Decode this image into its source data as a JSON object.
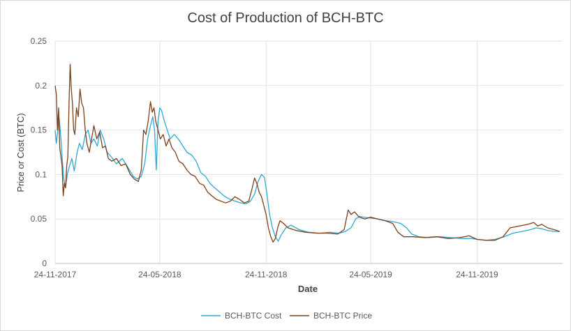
{
  "chart_data": {
    "type": "line",
    "title": "Cost of Production of BCH-BTC",
    "xlabel": "Date",
    "ylabel": "Price or Cost (BTC)",
    "ylim": [
      0,
      0.25
    ],
    "xlim": [
      "2017-11-24",
      "2020-04-20"
    ],
    "yticks": [
      "0",
      "0.05",
      "0.1",
      "0.15",
      "0.2",
      "0.25"
    ],
    "xticks": [
      {
        "label": "24-11-2017",
        "date": "2017-11-24"
      },
      {
        "label": "24-05-2018",
        "date": "2018-05-24"
      },
      {
        "label": "24-11-2018",
        "date": "2018-11-24"
      },
      {
        "label": "24-05-2019",
        "date": "2019-05-24"
      },
      {
        "label": "24-11-2019",
        "date": "2019-11-24"
      }
    ],
    "grid": true,
    "legend_position": "bottom",
    "colors": {
      "cost": "#2aa9d4",
      "price": "#7b3f1a"
    },
    "series": [
      {
        "name": "BCH-BTC Cost",
        "color": "#2aa9d4",
        "points": [
          [
            "2017-11-24",
            0.15
          ],
          [
            "2017-11-26",
            0.135
          ],
          [
            "2017-11-29",
            0.152
          ],
          [
            "2017-12-01",
            0.163
          ],
          [
            "2017-12-04",
            0.14
          ],
          [
            "2017-12-06",
            0.12
          ],
          [
            "2017-12-09",
            0.095
          ],
          [
            "2017-12-12",
            0.085
          ],
          [
            "2017-12-15",
            0.1
          ],
          [
            "2017-12-19",
            0.11
          ],
          [
            "2017-12-23",
            0.118
          ],
          [
            "2017-12-27",
            0.104
          ],
          [
            "2018-01-01",
            0.125
          ],
          [
            "2018-01-05",
            0.135
          ],
          [
            "2018-01-10",
            0.128
          ],
          [
            "2018-01-15",
            0.145
          ],
          [
            "2018-01-20",
            0.15
          ],
          [
            "2018-01-25",
            0.135
          ],
          [
            "2018-01-30",
            0.14
          ],
          [
            "2018-02-05",
            0.132
          ],
          [
            "2018-02-10",
            0.15
          ],
          [
            "2018-02-16",
            0.14
          ],
          [
            "2018-02-22",
            0.125
          ],
          [
            "2018-03-01",
            0.12
          ],
          [
            "2018-03-10",
            0.112
          ],
          [
            "2018-03-20",
            0.118
          ],
          [
            "2018-03-30",
            0.108
          ],
          [
            "2018-04-08",
            0.098
          ],
          [
            "2018-04-15",
            0.095
          ],
          [
            "2018-04-22",
            0.098
          ],
          [
            "2018-04-28",
            0.112
          ],
          [
            "2018-05-03",
            0.14
          ],
          [
            "2018-05-08",
            0.155
          ],
          [
            "2018-05-12",
            0.165
          ],
          [
            "2018-05-15",
            0.15
          ],
          [
            "2018-05-18",
            0.105
          ],
          [
            "2018-05-21",
            0.16
          ],
          [
            "2018-05-24",
            0.175
          ],
          [
            "2018-05-27",
            0.172
          ],
          [
            "2018-06-01",
            0.16
          ],
          [
            "2018-06-06",
            0.15
          ],
          [
            "2018-06-11",
            0.14
          ],
          [
            "2018-06-18",
            0.145
          ],
          [
            "2018-06-25",
            0.14
          ],
          [
            "2018-07-03",
            0.132
          ],
          [
            "2018-07-10",
            0.125
          ],
          [
            "2018-07-18",
            0.122
          ],
          [
            "2018-07-26",
            0.115
          ],
          [
            "2018-08-03",
            0.102
          ],
          [
            "2018-08-11",
            0.098
          ],
          [
            "2018-08-19",
            0.09
          ],
          [
            "2018-08-27",
            0.085
          ],
          [
            "2018-09-05",
            0.08
          ],
          [
            "2018-09-14",
            0.075
          ],
          [
            "2018-09-23",
            0.072
          ],
          [
            "2018-10-02",
            0.07
          ],
          [
            "2018-10-11",
            0.068
          ],
          [
            "2018-10-20",
            0.067
          ],
          [
            "2018-10-28",
            0.07
          ],
          [
            "2018-11-04",
            0.078
          ],
          [
            "2018-11-10",
            0.092
          ],
          [
            "2018-11-16",
            0.1
          ],
          [
            "2018-11-21",
            0.097
          ],
          [
            "2018-11-25",
            0.08
          ],
          [
            "2018-11-30",
            0.055
          ],
          [
            "2018-12-05",
            0.04
          ],
          [
            "2018-12-10",
            0.03
          ],
          [
            "2018-12-15",
            0.025
          ],
          [
            "2018-12-20",
            0.032
          ],
          [
            "2018-12-28",
            0.04
          ],
          [
            "2019-01-06",
            0.043
          ],
          [
            "2019-01-20",
            0.038
          ],
          [
            "2019-02-05",
            0.035
          ],
          [
            "2019-02-25",
            0.034
          ],
          [
            "2019-03-15",
            0.035
          ],
          [
            "2019-03-30",
            0.034
          ],
          [
            "2019-04-10",
            0.036
          ],
          [
            "2019-04-20",
            0.04
          ],
          [
            "2019-04-28",
            0.05
          ],
          [
            "2019-05-05",
            0.053
          ],
          [
            "2019-05-12",
            0.052
          ],
          [
            "2019-05-24",
            0.051
          ],
          [
            "2019-06-05",
            0.05
          ],
          [
            "2019-06-20",
            0.048
          ],
          [
            "2019-07-01",
            0.047
          ],
          [
            "2019-07-15",
            0.045
          ],
          [
            "2019-07-25",
            0.04
          ],
          [
            "2019-08-03",
            0.033
          ],
          [
            "2019-08-15",
            0.03
          ],
          [
            "2019-09-01",
            0.029
          ],
          [
            "2019-09-20",
            0.03
          ],
          [
            "2019-10-10",
            0.029
          ],
          [
            "2019-10-30",
            0.028
          ],
          [
            "2019-11-15",
            0.028
          ],
          [
            "2019-11-24",
            0.027
          ],
          [
            "2019-12-10",
            0.026
          ],
          [
            "2019-12-25",
            0.027
          ],
          [
            "2020-01-10",
            0.03
          ],
          [
            "2020-01-25",
            0.034
          ],
          [
            "2020-02-10",
            0.036
          ],
          [
            "2020-02-25",
            0.038
          ],
          [
            "2020-03-05",
            0.04
          ],
          [
            "2020-03-15",
            0.039
          ],
          [
            "2020-03-25",
            0.037
          ],
          [
            "2020-04-05",
            0.036
          ],
          [
            "2020-04-15",
            0.036
          ]
        ]
      },
      {
        "name": "BCH-BTC Price",
        "color": "#7b3f1a",
        "points": [
          [
            "2017-11-24",
            0.2
          ],
          [
            "2017-11-26",
            0.19
          ],
          [
            "2017-11-28",
            0.15
          ],
          [
            "2017-11-30",
            0.175
          ],
          [
            "2017-12-02",
            0.13
          ],
          [
            "2017-12-04",
            0.12
          ],
          [
            "2017-12-06",
            0.11
          ],
          [
            "2017-12-08",
            0.076
          ],
          [
            "2017-12-10",
            0.09
          ],
          [
            "2017-12-12",
            0.085
          ],
          [
            "2017-12-14",
            0.11
          ],
          [
            "2017-12-16",
            0.12
          ],
          [
            "2017-12-18",
            0.18
          ],
          [
            "2017-12-20",
            0.224
          ],
          [
            "2017-12-22",
            0.195
          ],
          [
            "2017-12-24",
            0.18
          ],
          [
            "2017-12-26",
            0.15
          ],
          [
            "2017-12-28",
            0.145
          ],
          [
            "2017-12-31",
            0.175
          ],
          [
            "2018-01-03",
            0.165
          ],
          [
            "2018-01-06",
            0.196
          ],
          [
            "2018-01-09",
            0.18
          ],
          [
            "2018-01-12",
            0.175
          ],
          [
            "2018-01-15",
            0.15
          ],
          [
            "2018-01-18",
            0.135
          ],
          [
            "2018-01-22",
            0.125
          ],
          [
            "2018-01-26",
            0.14
          ],
          [
            "2018-01-30",
            0.155
          ],
          [
            "2018-02-04",
            0.14
          ],
          [
            "2018-02-09",
            0.148
          ],
          [
            "2018-02-14",
            0.13
          ],
          [
            "2018-02-19",
            0.132
          ],
          [
            "2018-02-24",
            0.118
          ],
          [
            "2018-03-02",
            0.115
          ],
          [
            "2018-03-10",
            0.118
          ],
          [
            "2018-03-18",
            0.11
          ],
          [
            "2018-03-26",
            0.112
          ],
          [
            "2018-04-03",
            0.1
          ],
          [
            "2018-04-10",
            0.095
          ],
          [
            "2018-04-17",
            0.092
          ],
          [
            "2018-04-22",
            0.105
          ],
          [
            "2018-04-26",
            0.15
          ],
          [
            "2018-04-30",
            0.145
          ],
          [
            "2018-05-04",
            0.16
          ],
          [
            "2018-05-08",
            0.182
          ],
          [
            "2018-05-11",
            0.17
          ],
          [
            "2018-05-14",
            0.175
          ],
          [
            "2018-05-17",
            0.16
          ],
          [
            "2018-05-21",
            0.15
          ],
          [
            "2018-05-25",
            0.14
          ],
          [
            "2018-05-30",
            0.145
          ],
          [
            "2018-06-04",
            0.132
          ],
          [
            "2018-06-09",
            0.14
          ],
          [
            "2018-06-14",
            0.13
          ],
          [
            "2018-06-20",
            0.125
          ],
          [
            "2018-06-26",
            0.115
          ],
          [
            "2018-07-03",
            0.112
          ],
          [
            "2018-07-10",
            0.105
          ],
          [
            "2018-07-17",
            0.1
          ],
          [
            "2018-07-24",
            0.098
          ],
          [
            "2018-08-01",
            0.09
          ],
          [
            "2018-08-08",
            0.088
          ],
          [
            "2018-08-15",
            0.08
          ],
          [
            "2018-08-22",
            0.076
          ],
          [
            "2018-08-30",
            0.072
          ],
          [
            "2018-09-07",
            0.07
          ],
          [
            "2018-09-15",
            0.068
          ],
          [
            "2018-09-23",
            0.07
          ],
          [
            "2018-10-01",
            0.075
          ],
          [
            "2018-10-09",
            0.072
          ],
          [
            "2018-10-17",
            0.068
          ],
          [
            "2018-10-25",
            0.07
          ],
          [
            "2018-10-31",
            0.085
          ],
          [
            "2018-11-04",
            0.096
          ],
          [
            "2018-11-08",
            0.09
          ],
          [
            "2018-11-12",
            0.08
          ],
          [
            "2018-11-16",
            0.075
          ],
          [
            "2018-11-20",
            0.065
          ],
          [
            "2018-11-24",
            0.055
          ],
          [
            "2018-11-28",
            0.04
          ],
          [
            "2018-12-02",
            0.03
          ],
          [
            "2018-12-06",
            0.024
          ],
          [
            "2018-12-10",
            0.028
          ],
          [
            "2018-12-14",
            0.04
          ],
          [
            "2018-12-18",
            0.048
          ],
          [
            "2018-12-24",
            0.045
          ],
          [
            "2019-01-01",
            0.04
          ],
          [
            "2019-01-15",
            0.037
          ],
          [
            "2019-02-01",
            0.035
          ],
          [
            "2019-02-20",
            0.034
          ],
          [
            "2019-03-10",
            0.034
          ],
          [
            "2019-03-28",
            0.033
          ],
          [
            "2019-04-08",
            0.038
          ],
          [
            "2019-04-15",
            0.06
          ],
          [
            "2019-04-20",
            0.055
          ],
          [
            "2019-04-26",
            0.058
          ],
          [
            "2019-05-04",
            0.052
          ],
          [
            "2019-05-14",
            0.05
          ],
          [
            "2019-05-24",
            0.052
          ],
          [
            "2019-06-05",
            0.05
          ],
          [
            "2019-06-18",
            0.048
          ],
          [
            "2019-07-01",
            0.045
          ],
          [
            "2019-07-10",
            0.035
          ],
          [
            "2019-07-20",
            0.03
          ],
          [
            "2019-08-05",
            0.03
          ],
          [
            "2019-08-25",
            0.029
          ],
          [
            "2019-09-15",
            0.03
          ],
          [
            "2019-10-05",
            0.028
          ],
          [
            "2019-10-25",
            0.029
          ],
          [
            "2019-11-10",
            0.031
          ],
          [
            "2019-11-24",
            0.027
          ],
          [
            "2019-12-10",
            0.026
          ],
          [
            "2019-12-25",
            0.026
          ],
          [
            "2020-01-08",
            0.03
          ],
          [
            "2020-01-20",
            0.04
          ],
          [
            "2020-02-05",
            0.042
          ],
          [
            "2020-02-20",
            0.044
          ],
          [
            "2020-03-01",
            0.046
          ],
          [
            "2020-03-08",
            0.042
          ],
          [
            "2020-03-15",
            0.044
          ],
          [
            "2020-03-25",
            0.04
          ],
          [
            "2020-04-05",
            0.038
          ],
          [
            "2020-04-15",
            0.036
          ]
        ]
      }
    ]
  }
}
